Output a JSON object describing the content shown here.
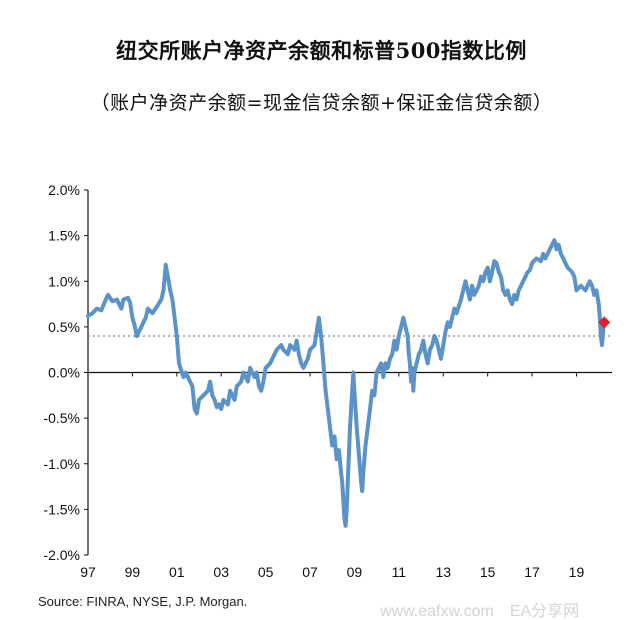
{
  "chart_data": {
    "type": "line",
    "title": "纽交所账户净资产余额和标普500指数比例",
    "subtitle": "（账户净资产余额=现金信贷余额+保证金信贷余额）",
    "xlabel": "",
    "ylabel": "",
    "x_tick_labels": [
      "97",
      "99",
      "01",
      "03",
      "05",
      "07",
      "09",
      "11",
      "13",
      "15",
      "17",
      "19"
    ],
    "x_tick_years": [
      1997,
      1999,
      2001,
      2003,
      2005,
      2007,
      2009,
      2011,
      2013,
      2015,
      2017,
      2019
    ],
    "xlim": [
      1997,
      2020.6
    ],
    "y_tick_labels": [
      "2.0%",
      "1.5%",
      "1.0%",
      "0.5%",
      "0.0%",
      "-0.5%",
      "-1.0%",
      "-1.5%",
      "-2.0%"
    ],
    "y_tick_values": [
      2.0,
      1.5,
      1.0,
      0.5,
      0.0,
      -0.5,
      -1.0,
      -1.5,
      -2.0
    ],
    "ylim": [
      -2.0,
      2.0
    ],
    "average_line": 0.4,
    "grid": false,
    "series": [
      {
        "color": "#5b93c9",
        "points": [
          [
            1997.0,
            0.62
          ],
          [
            1997.2,
            0.65
          ],
          [
            1997.4,
            0.7
          ],
          [
            1997.6,
            0.68
          ],
          [
            1997.8,
            0.8
          ],
          [
            1997.9,
            0.85
          ],
          [
            1998.1,
            0.78
          ],
          [
            1998.3,
            0.8
          ],
          [
            1998.5,
            0.7
          ],
          [
            1998.6,
            0.8
          ],
          [
            1998.8,
            0.82
          ],
          [
            1998.9,
            0.76
          ],
          [
            1999.0,
            0.6
          ],
          [
            1999.1,
            0.52
          ],
          [
            1999.2,
            0.4
          ],
          [
            1999.4,
            0.5
          ],
          [
            1999.6,
            0.6
          ],
          [
            1999.7,
            0.7
          ],
          [
            1999.9,
            0.65
          ],
          [
            2000.1,
            0.72
          ],
          [
            2000.3,
            0.8
          ],
          [
            2000.4,
            0.9
          ],
          [
            2000.5,
            1.18
          ],
          [
            2000.6,
            1.05
          ],
          [
            2000.7,
            0.9
          ],
          [
            2000.8,
            0.8
          ],
          [
            2000.9,
            0.6
          ],
          [
            2001.0,
            0.4
          ],
          [
            2001.1,
            0.1
          ],
          [
            2001.2,
            0.02
          ],
          [
            2001.3,
            -0.05
          ],
          [
            2001.4,
            0.0
          ],
          [
            2001.6,
            -0.1
          ],
          [
            2001.7,
            -0.15
          ],
          [
            2001.8,
            -0.4
          ],
          [
            2001.9,
            -0.45
          ],
          [
            2002.0,
            -0.3
          ],
          [
            2002.2,
            -0.25
          ],
          [
            2002.4,
            -0.2
          ],
          [
            2002.5,
            -0.1
          ],
          [
            2002.6,
            -0.25
          ],
          [
            2002.7,
            -0.3
          ],
          [
            2002.8,
            -0.38
          ],
          [
            2002.9,
            -0.35
          ],
          [
            2003.0,
            -0.4
          ],
          [
            2003.1,
            -0.3
          ],
          [
            2003.3,
            -0.35
          ],
          [
            2003.4,
            -0.2
          ],
          [
            2003.6,
            -0.3
          ],
          [
            2003.7,
            -0.15
          ],
          [
            2003.9,
            -0.1
          ],
          [
            2004.0,
            0.0
          ],
          [
            2004.2,
            -0.1
          ],
          [
            2004.3,
            0.05
          ],
          [
            2004.5,
            -0.05
          ],
          [
            2004.6,
            0.0
          ],
          [
            2004.7,
            -0.15
          ],
          [
            2004.8,
            -0.2
          ],
          [
            2004.9,
            -0.1
          ],
          [
            2005.0,
            0.05
          ],
          [
            2005.2,
            0.1
          ],
          [
            2005.4,
            0.2
          ],
          [
            2005.5,
            0.25
          ],
          [
            2005.7,
            0.3
          ],
          [
            2005.8,
            0.25
          ],
          [
            2006.0,
            0.2
          ],
          [
            2006.1,
            0.3
          ],
          [
            2006.3,
            0.25
          ],
          [
            2006.4,
            0.35
          ],
          [
            2006.5,
            0.2
          ],
          [
            2006.6,
            0.1
          ],
          [
            2006.7,
            0.05
          ],
          [
            2006.9,
            0.15
          ],
          [
            2007.0,
            0.25
          ],
          [
            2007.2,
            0.3
          ],
          [
            2007.3,
            0.45
          ],
          [
            2007.4,
            0.6
          ],
          [
            2007.5,
            0.4
          ],
          [
            2007.6,
            0.1
          ],
          [
            2007.7,
            -0.2
          ],
          [
            2007.8,
            -0.4
          ],
          [
            2007.9,
            -0.6
          ],
          [
            2008.0,
            -0.8
          ],
          [
            2008.1,
            -0.7
          ],
          [
            2008.2,
            -0.95
          ],
          [
            2008.3,
            -0.85
          ],
          [
            2008.4,
            -1.1
          ],
          [
            2008.45,
            -1.2
          ],
          [
            2008.5,
            -1.4
          ],
          [
            2008.55,
            -1.6
          ],
          [
            2008.6,
            -1.68
          ],
          [
            2008.65,
            -1.5
          ],
          [
            2008.7,
            -1.2
          ],
          [
            2008.75,
            -0.9
          ],
          [
            2008.8,
            -0.6
          ],
          [
            2008.85,
            -0.4
          ],
          [
            2008.9,
            -0.2
          ],
          [
            2008.95,
            0.0
          ],
          [
            2009.0,
            -0.2
          ],
          [
            2009.1,
            -0.6
          ],
          [
            2009.2,
            -0.9
          ],
          [
            2009.3,
            -1.2
          ],
          [
            2009.35,
            -1.3
          ],
          [
            2009.4,
            -1.1
          ],
          [
            2009.5,
            -0.8
          ],
          [
            2009.6,
            -0.6
          ],
          [
            2009.7,
            -0.4
          ],
          [
            2009.8,
            -0.2
          ],
          [
            2009.9,
            -0.25
          ],
          [
            2010.0,
            0.0
          ],
          [
            2010.1,
            0.05
          ],
          [
            2010.2,
            0.1
          ],
          [
            2010.3,
            -0.05
          ],
          [
            2010.4,
            0.1
          ],
          [
            2010.5,
            0.05
          ],
          [
            2010.6,
            0.15
          ],
          [
            2010.7,
            0.2
          ],
          [
            2010.8,
            0.35
          ],
          [
            2010.9,
            0.25
          ],
          [
            2011.0,
            0.4
          ],
          [
            2011.1,
            0.5
          ],
          [
            2011.2,
            0.6
          ],
          [
            2011.3,
            0.5
          ],
          [
            2011.4,
            0.4
          ],
          [
            2011.45,
            0.2
          ],
          [
            2011.5,
            0.1
          ],
          [
            2011.55,
            -0.1
          ],
          [
            2011.6,
            0.05
          ],
          [
            2011.65,
            -0.2
          ],
          [
            2011.7,
            0.0
          ],
          [
            2011.8,
            0.1
          ],
          [
            2011.9,
            0.2
          ],
          [
            2012.0,
            0.25
          ],
          [
            2012.1,
            0.35
          ],
          [
            2012.2,
            0.2
          ],
          [
            2012.3,
            0.1
          ],
          [
            2012.4,
            0.25
          ],
          [
            2012.5,
            0.3
          ],
          [
            2012.6,
            0.4
          ],
          [
            2012.7,
            0.35
          ],
          [
            2012.8,
            0.25
          ],
          [
            2012.9,
            0.15
          ],
          [
            2013.0,
            0.3
          ],
          [
            2013.1,
            0.45
          ],
          [
            2013.2,
            0.55
          ],
          [
            2013.3,
            0.5
          ],
          [
            2013.4,
            0.6
          ],
          [
            2013.5,
            0.7
          ],
          [
            2013.6,
            0.65
          ],
          [
            2013.8,
            0.8
          ],
          [
            2013.9,
            0.9
          ],
          [
            2014.0,
            1.0
          ],
          [
            2014.1,
            0.9
          ],
          [
            2014.2,
            0.8
          ],
          [
            2014.3,
            0.95
          ],
          [
            2014.4,
            0.85
          ],
          [
            2014.5,
            0.9
          ],
          [
            2014.6,
            0.95
          ],
          [
            2014.7,
            1.05
          ],
          [
            2014.8,
            1.0
          ],
          [
            2014.9,
            1.1
          ],
          [
            2015.0,
            1.15
          ],
          [
            2015.1,
            1.0
          ],
          [
            2015.2,
            1.1
          ],
          [
            2015.3,
            1.22
          ],
          [
            2015.4,
            1.2
          ],
          [
            2015.5,
            1.1
          ],
          [
            2015.6,
            1.05
          ],
          [
            2015.7,
            0.9
          ],
          [
            2015.8,
            0.85
          ],
          [
            2015.9,
            0.9
          ],
          [
            2016.0,
            0.8
          ],
          [
            2016.1,
            0.75
          ],
          [
            2016.2,
            0.85
          ],
          [
            2016.3,
            0.8
          ],
          [
            2016.4,
            0.9
          ],
          [
            2016.5,
            0.95
          ],
          [
            2016.6,
            1.0
          ],
          [
            2016.7,
            1.05
          ],
          [
            2016.8,
            1.1
          ],
          [
            2016.9,
            1.12
          ],
          [
            2017.0,
            1.2
          ],
          [
            2017.2,
            1.25
          ],
          [
            2017.4,
            1.22
          ],
          [
            2017.5,
            1.3
          ],
          [
            2017.6,
            1.25
          ],
          [
            2017.8,
            1.35
          ],
          [
            2017.9,
            1.4
          ],
          [
            2018.0,
            1.45
          ],
          [
            2018.05,
            1.42
          ],
          [
            2018.1,
            1.35
          ],
          [
            2018.2,
            1.4
          ],
          [
            2018.3,
            1.3
          ],
          [
            2018.4,
            1.25
          ],
          [
            2018.5,
            1.2
          ],
          [
            2018.6,
            1.15
          ],
          [
            2018.8,
            1.1
          ],
          [
            2018.9,
            1.05
          ],
          [
            2019.0,
            0.9
          ],
          [
            2019.2,
            0.95
          ],
          [
            2019.4,
            0.9
          ],
          [
            2019.6,
            1.0
          ],
          [
            2019.7,
            0.95
          ],
          [
            2019.8,
            0.85
          ],
          [
            2019.9,
            0.9
          ],
          [
            2020.0,
            0.75
          ],
          [
            2020.05,
            0.6
          ],
          [
            2020.1,
            0.4
          ],
          [
            2020.15,
            0.3
          ],
          [
            2020.2,
            0.45
          ],
          [
            2020.25,
            0.55
          ]
        ]
      }
    ],
    "highlight_point": {
      "x": 2020.25,
      "y": 0.55,
      "color": "#e0202a"
    },
    "source": "Source: FINRA, NYSE, J.P. Morgan."
  },
  "watermark": "www.eafxw.com　EA分享网"
}
